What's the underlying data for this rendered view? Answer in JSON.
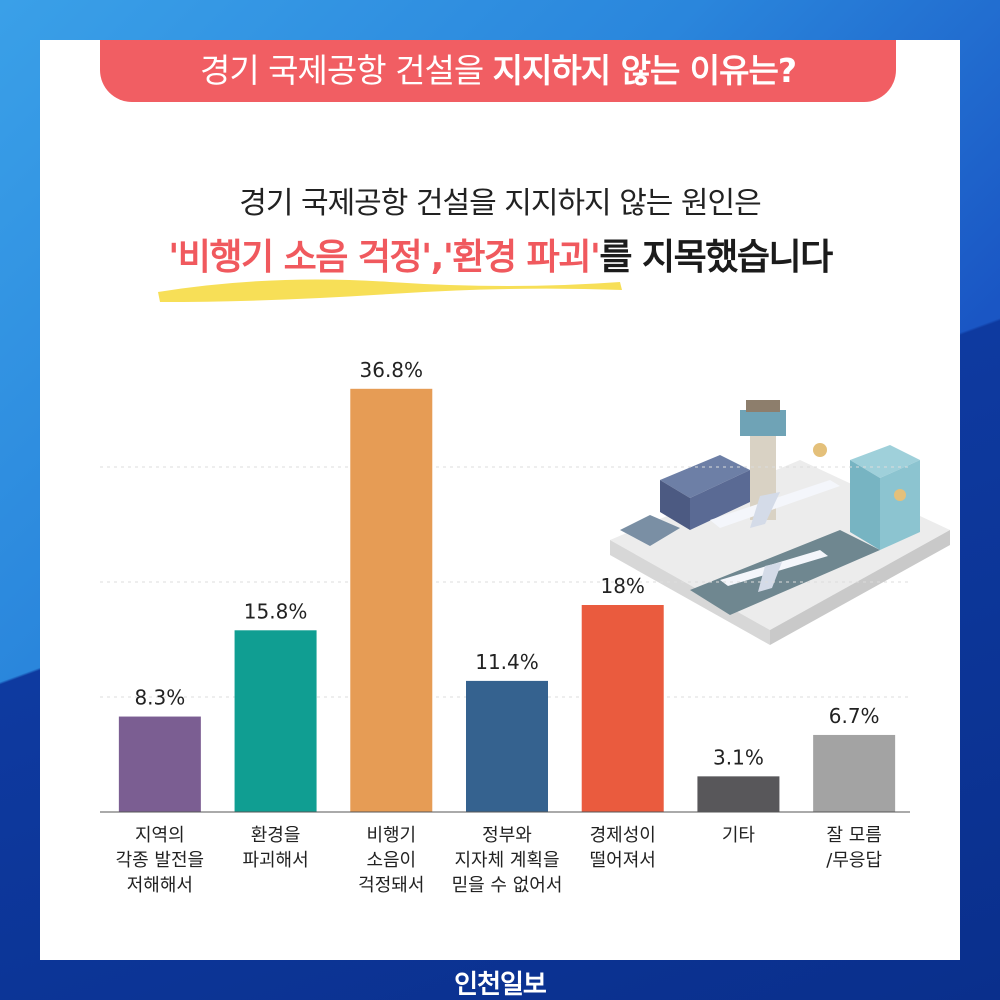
{
  "header": {
    "title_plain": "경기 국제공항 건설을 ",
    "title_bold": "지지하지 않는 이유는?"
  },
  "subtitle": "경기 국제공항 건설을 지지하지 않는 원인은",
  "headline": {
    "highlight1": "'비행기 소음 걱정'",
    "comma": ",",
    "highlight2": "'환경 파괴'",
    "rest": "를 지목했습니다"
  },
  "logo_text": "인천일보",
  "chart_data": {
    "type": "bar",
    "categories": [
      [
        "지역의",
        "각종 발전을",
        "저해해서"
      ],
      [
        "환경을",
        "파괴해서"
      ],
      [
        "비행기",
        "소음이",
        "걱정돼서"
      ],
      [
        "정부와",
        "지자체 계획을",
        "믿을 수 없어서"
      ],
      [
        "경제성이",
        "떨어져서"
      ],
      [
        "기타"
      ],
      [
        "잘 모름",
        "/무응답"
      ]
    ],
    "values": [
      8.3,
      15.8,
      36.8,
      11.4,
      18,
      3.1,
      6.7
    ],
    "value_labels": [
      "8.3%",
      "15.8%",
      "36.8%",
      "11.4%",
      "18%",
      "3.1%",
      "6.7%"
    ],
    "colors": [
      "#7b5e92",
      "#109e92",
      "#e69c55",
      "#35628f",
      "#ea5b3e",
      "#58575a",
      "#a3a3a3"
    ],
    "ylim": [
      0,
      40
    ],
    "grid": true,
    "legend": "none"
  }
}
